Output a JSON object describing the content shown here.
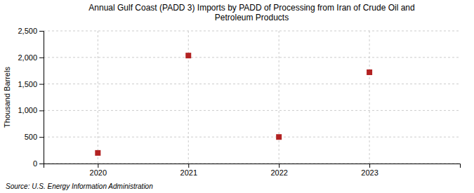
{
  "chart_data": {
    "type": "scatter",
    "title": "Annual Gulf Coast (PADD 3) Imports by PADD of Processing from Iran of Crude Oil and\nPetroleum Products",
    "x": [
      2020,
      2021,
      2022,
      2023
    ],
    "values": [
      200,
      2035,
      500,
      1720
    ],
    "y_label": "Thousand Barrels",
    "source": "Source: U.S. Energy Information Administration",
    "xlim": [
      2019.4,
      2024.0
    ],
    "xticks": [
      2020,
      2021,
      2022,
      2023
    ],
    "ylim": [
      0,
      2500
    ],
    "yticks": [
      0,
      500,
      {
        "value": 1000,
        "label": "1,000"
      },
      {
        "value": 1500,
        "label": "1,500"
      },
      {
        "value": 2000,
        "label": "2,000"
      },
      {
        "value": 2500,
        "label": "2,500"
      }
    ],
    "color": "#b22222",
    "marker": "square",
    "grid": true
  }
}
